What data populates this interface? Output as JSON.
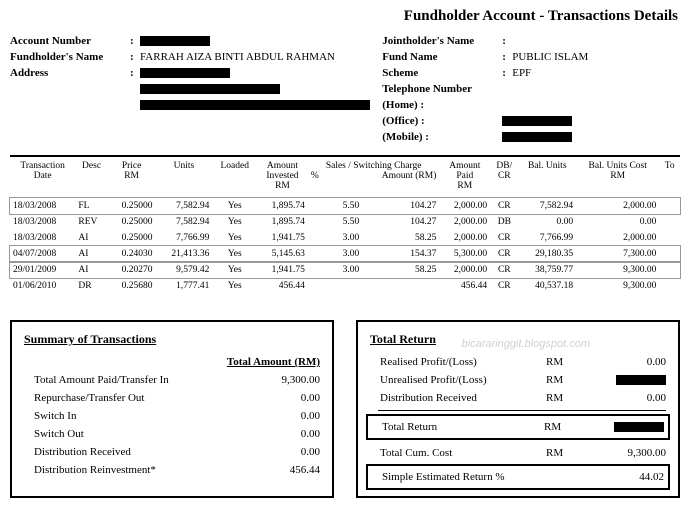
{
  "title": "Fundholder Account - Transactions Details",
  "header": {
    "left": {
      "account_number_label": "Account Number",
      "fundholder_label": "Fundholder's Name",
      "fundholder_value": "FARRAH AIZA BINTI ABDUL RAHMAN",
      "address_label": "Address"
    },
    "right": {
      "joint_label": "Jointholder's  Name",
      "fund_label": "Fund Name",
      "fund_value": "PUBLIC ISLAM",
      "scheme_label": "Scheme",
      "scheme_value": "EPF",
      "tel_label": "Telephone Number",
      "home_label": "(Home) :",
      "office_label": "(Office) :",
      "mobile_label": "(Mobile) :"
    }
  },
  "columns": {
    "c0a": "Transaction",
    "c0b": "Date",
    "c1": "Desc",
    "c2a": "Price",
    "c2b": "RM",
    "c3": "Units",
    "c4": "Loaded",
    "c5a": "Amount",
    "c5b": "Invested",
    "c5c": "RM",
    "c6a": "Sales / Switching Charge",
    "c6b": "%",
    "c6c": "Amount (RM)",
    "c7a": "Amount",
    "c7b": "Paid",
    "c7c": "RM",
    "c8a": "DB/",
    "c8b": "CR",
    "c9": "Bal. Units",
    "c10a": "Bal. Units Cost",
    "c10b": "RM",
    "c11": "To"
  },
  "rows": [
    {
      "date": "18/03/2008",
      "desc": "FL",
      "price": "0.25000",
      "units": "7,582.94",
      "loaded": "Yes",
      "inv": "1,895.74",
      "pct": "5.50",
      "chg": "104.27",
      "paid": "2,000.00",
      "dbcr": "CR",
      "bal": "7,582.94",
      "cost": "2,000.00",
      "hl": true
    },
    {
      "date": "18/03/2008",
      "desc": "REV",
      "price": "0.25000",
      "units": "7,582.94",
      "loaded": "Yes",
      "inv": "1,895.74",
      "pct": "5.50",
      "chg": "104.27",
      "paid": "2,000.00",
      "dbcr": "DB",
      "bal": "0.00",
      "cost": "0.00",
      "hl": false
    },
    {
      "date": "18/03/2008",
      "desc": "AI",
      "price": "0.25000",
      "units": "7,766.99",
      "loaded": "Yes",
      "inv": "1,941.75",
      "pct": "3.00",
      "chg": "58.25",
      "paid": "2,000.00",
      "dbcr": "CR",
      "bal": "7,766.99",
      "cost": "2,000.00",
      "hl": false
    },
    {
      "date": "04/07/2008",
      "desc": "AI",
      "price": "0.24030",
      "units": "21,413.36",
      "loaded": "Yes",
      "inv": "5,145.63",
      "pct": "3.00",
      "chg": "154.37",
      "paid": "5,300.00",
      "dbcr": "CR",
      "bal": "29,180.35",
      "cost": "7,300.00",
      "hl": true
    },
    {
      "date": "29/01/2009",
      "desc": "AI",
      "price": "0.20270",
      "units": "9,579.42",
      "loaded": "Yes",
      "inv": "1,941.75",
      "pct": "3.00",
      "chg": "58.25",
      "paid": "2,000.00",
      "dbcr": "CR",
      "bal": "38,759.77",
      "cost": "9,300.00",
      "hl": true
    },
    {
      "date": "01/06/2010",
      "desc": "DR",
      "price": "0.25680",
      "units": "1,777.41",
      "loaded": "Yes",
      "inv": "456.44",
      "pct": "",
      "chg": "",
      "paid": "456.44",
      "dbcr": "CR",
      "bal": "40,537.18",
      "cost": "9,300.00",
      "hl": false
    }
  ],
  "watermark": "bicararinggit.blogspot.com",
  "summary": {
    "title": "Summary of Transactions",
    "col_header": "Total Amount (RM)",
    "rows": [
      {
        "label": "Total Amount Paid/Transfer In",
        "val": "9,300.00"
      },
      {
        "label": "Repurchase/Transfer Out",
        "val": "0.00"
      },
      {
        "label": "Switch In",
        "val": "0.00"
      },
      {
        "label": "Switch Out",
        "val": "0.00"
      },
      {
        "label": "Distribution Received",
        "val": "0.00"
      },
      {
        "label": "Distribution Reinvestment*",
        "val": "456.44"
      }
    ]
  },
  "return": {
    "title": "Total Return",
    "unit": "RM",
    "rows_top": [
      {
        "label": "Realised Profit/(Loss)",
        "val": "0.00"
      },
      {
        "label": "Unrealised Profit/(Loss)",
        "val": "REDACT"
      },
      {
        "label": "Distribution Received",
        "val": "0.00"
      }
    ],
    "total_label": "Total Return",
    "total_val": "REDACT",
    "cum_label": "Total Cum. Cost",
    "cum_val": "9,300.00",
    "est_label": "Simple Estimated Return %",
    "est_val": "44.02"
  }
}
